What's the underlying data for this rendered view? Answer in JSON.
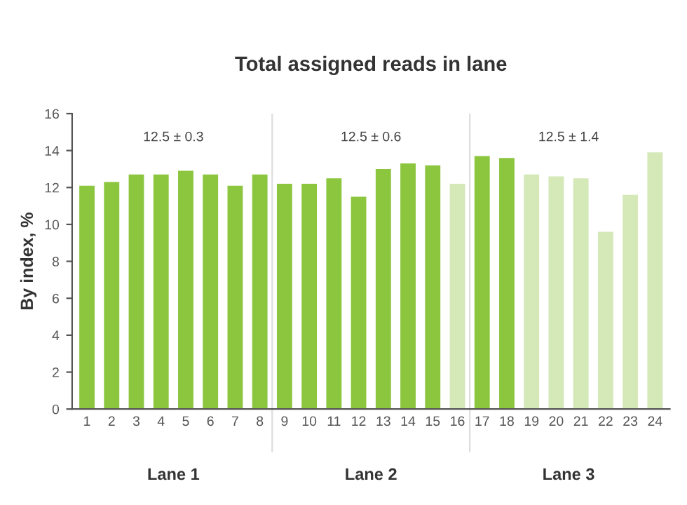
{
  "chart_data": {
    "type": "bar",
    "title": "Total assigned reads in lane",
    "ylabel": "By index, %",
    "categories": [
      "1",
      "2",
      "3",
      "4",
      "5",
      "6",
      "7",
      "8",
      "9",
      "10",
      "11",
      "12",
      "13",
      "14",
      "15",
      "16",
      "17",
      "18",
      "19",
      "20",
      "21",
      "22",
      "23",
      "24"
    ],
    "values": [
      12.1,
      12.3,
      12.7,
      12.7,
      12.9,
      12.7,
      12.1,
      12.7,
      12.2,
      12.2,
      12.5,
      11.5,
      13.0,
      13.3,
      13.2,
      12.2,
      13.7,
      13.6,
      12.7,
      12.6,
      12.5,
      9.6,
      11.6,
      13.9
    ],
    "colors": [
      "#8cc63f",
      "#8cc63f",
      "#8cc63f",
      "#8cc63f",
      "#8cc63f",
      "#8cc63f",
      "#8cc63f",
      "#8cc63f",
      "#8cc63f",
      "#8cc63f",
      "#8cc63f",
      "#8cc63f",
      "#8cc63f",
      "#8cc63f",
      "#8cc63f",
      "#d4e8b8",
      "#8cc63f",
      "#8cc63f",
      "#d4e8b8",
      "#d4e8b8",
      "#d4e8b8",
      "#d4e8b8",
      "#d4e8b8",
      "#d4e8b8"
    ],
    "ylim": [
      0,
      16
    ],
    "yticks": [
      0,
      2,
      4,
      6,
      8,
      10,
      12,
      14,
      16
    ],
    "grid": false,
    "annotations": [
      "12.5 ± 0.3",
      "12.5 ± 0.6",
      "12.5 ± 1.4",
      "Lane 1",
      "Lane 2",
      "Lane 3"
    ]
  }
}
